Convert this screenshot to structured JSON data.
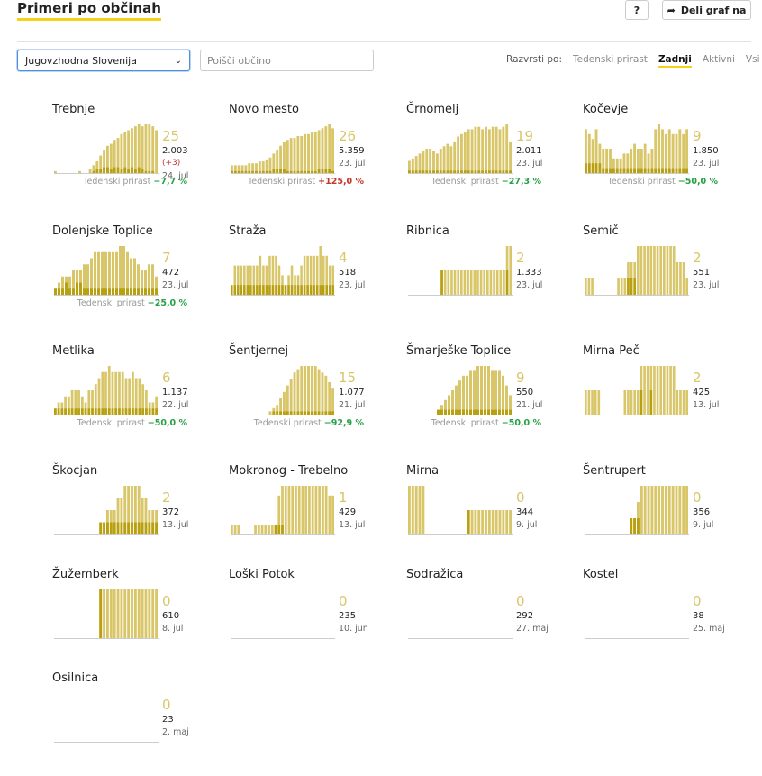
{
  "header": {
    "title": "Primeri po občinah",
    "help_label": "?",
    "share_label": "Deli graf na",
    "share_icon": "share-arrow-icon"
  },
  "filters": {
    "region_value": "Jugovzhodna Slovenija",
    "search_placeholder": "Poišči občino",
    "sort_label": "Razvrsti po:",
    "sort_options": [
      "Tedenski prirast",
      "Zadnji",
      "Aktivni",
      "Vsi"
    ],
    "sort_active": "Zadnji"
  },
  "colors": {
    "bar_light": "#d8c669",
    "bar_dark": "#b8a010",
    "accent": "#f5d21a",
    "positive": "#c0392b",
    "negative": "#27a046"
  },
  "chart_data": [
    {
      "type": "bar",
      "name": "Trebnje",
      "last": "25",
      "total": "2.003",
      "diff": "(+3)",
      "date": "24. jul",
      "growth_label": "Tedenski prirast",
      "growth": "−7,7 %",
      "growth_dir": "neg",
      "values": [
        1,
        0,
        0,
        0,
        0,
        0,
        0,
        1,
        0,
        0,
        2,
        4,
        6,
        9,
        12,
        14,
        15,
        17,
        18,
        20,
        21,
        22,
        23,
        24,
        25,
        24,
        25,
        25,
        24,
        22
      ],
      "dark": [
        0,
        0,
        0,
        0,
        0,
        0,
        0,
        0,
        0,
        0,
        0,
        1,
        2,
        2,
        3,
        3,
        2,
        3,
        3,
        2,
        3,
        2,
        3,
        2,
        3,
        2,
        1,
        1,
        1,
        0
      ]
    },
    {
      "type": "bar",
      "name": "Novo mesto",
      "last": "26",
      "total": "5.359",
      "date": "23. jul",
      "growth_label": "Tedenski prirast",
      "growth": "+125,0 %",
      "growth_dir": "pos",
      "values": [
        4,
        4,
        4,
        4,
        4,
        5,
        5,
        5,
        6,
        6,
        7,
        8,
        10,
        12,
        14,
        16,
        17,
        18,
        18,
        19,
        19,
        20,
        20,
        21,
        21,
        22,
        23,
        24,
        25,
        23
      ],
      "dark": [
        1,
        1,
        1,
        1,
        1,
        1,
        1,
        1,
        1,
        1,
        1,
        1,
        2,
        2,
        2,
        2,
        1,
        1,
        1,
        1,
        1,
        1,
        1,
        1,
        1,
        2,
        2,
        2,
        2,
        1
      ]
    },
    {
      "type": "bar",
      "name": "Črnomelj",
      "last": "19",
      "total": "2.011",
      "date": "23. jul",
      "growth_label": "Tedenski prirast",
      "growth": "−27,3 %",
      "growth_dir": "neg",
      "values": [
        5,
        6,
        7,
        8,
        9,
        10,
        10,
        9,
        8,
        10,
        11,
        12,
        11,
        13,
        15,
        16,
        17,
        18,
        18,
        19,
        19,
        18,
        19,
        18,
        19,
        19,
        18,
        19,
        20,
        13
      ],
      "dark": [
        1,
        1,
        1,
        1,
        1,
        1,
        1,
        1,
        1,
        1,
        1,
        1,
        1,
        1,
        1,
        1,
        1,
        1,
        1,
        1,
        1,
        1,
        1,
        1,
        1,
        1,
        1,
        1,
        1,
        1
      ]
    },
    {
      "type": "bar",
      "name": "Kočevje",
      "last": "9",
      "total": "1.850",
      "date": "23. jul",
      "growth_label": "Tedenski prirast",
      "growth": "−50,0 %",
      "growth_dir": "neg",
      "values": [
        9,
        8,
        7,
        9,
        6,
        5,
        5,
        5,
        3,
        3,
        3,
        4,
        4,
        5,
        6,
        5,
        5,
        6,
        4,
        5,
        9,
        10,
        9,
        8,
        9,
        8,
        8,
        9,
        8,
        9
      ],
      "dark": [
        2,
        2,
        2,
        2,
        2,
        1,
        1,
        1,
        1,
        1,
        1,
        1,
        1,
        1,
        1,
        1,
        1,
        1,
        1,
        1,
        1,
        1,
        1,
        1,
        1,
        1,
        1,
        1,
        1,
        1
      ]
    },
    {
      "type": "bar",
      "name": "Dolenjske Toplice",
      "last": "7",
      "total": "472",
      "date": "23. jul",
      "growth_label": "Tedenski prirast",
      "growth": "−25,0 %",
      "growth_dir": "neg",
      "values": [
        1,
        2,
        3,
        3,
        3,
        4,
        4,
        4,
        5,
        5,
        6,
        7,
        7,
        7,
        7,
        7,
        7,
        7,
        8,
        8,
        7,
        6,
        6,
        5,
        4,
        4,
        5,
        5,
        3
      ],
      "dark": [
        1,
        1,
        1,
        2,
        1,
        1,
        2,
        2,
        1,
        1,
        1,
        1,
        1,
        1,
        1,
        1,
        1,
        1,
        1,
        1,
        1,
        1,
        1,
        1,
        1,
        1,
        1,
        1,
        1
      ]
    },
    {
      "type": "bar",
      "name": "Straža",
      "last": "4",
      "total": "518",
      "date": "23. jul",
      "growth_label": "",
      "growth": "",
      "growth_dir": "neg",
      "values": [
        1,
        3,
        3,
        3,
        3,
        3,
        3,
        3,
        3,
        4,
        3,
        3,
        4,
        4,
        4,
        3,
        2,
        1,
        2,
        3,
        2,
        2,
        3,
        4,
        4,
        4,
        4,
        4,
        5,
        4,
        4,
        3,
        3
      ],
      "dark": [
        1,
        1,
        1,
        1,
        1,
        1,
        1,
        1,
        1,
        1,
        1,
        1,
        1,
        1,
        1,
        1,
        1,
        1,
        1,
        1,
        1,
        1,
        1,
        1,
        1,
        1,
        1,
        1,
        1,
        1,
        1,
        1,
        1
      ]
    },
    {
      "type": "bar",
      "name": "Ribnica",
      "last": "2",
      "total": "1.333",
      "date": "23. jul",
      "growth_label": "",
      "growth": "",
      "growth_dir": "neg",
      "values": [
        0,
        0,
        0,
        0,
        0,
        0,
        0,
        0,
        0,
        0,
        1,
        1,
        1,
        1,
        1,
        1,
        1,
        1,
        1,
        1,
        1,
        1,
        1,
        1,
        1,
        1,
        1,
        1,
        1,
        1,
        2,
        2
      ],
      "dark": [
        0,
        0,
        0,
        0,
        0,
        0,
        0,
        0,
        0,
        0,
        1,
        0,
        0,
        0,
        0,
        0,
        0,
        0,
        0,
        0,
        0,
        0,
        0,
        0,
        0,
        0,
        0,
        0,
        0,
        0,
        1,
        0
      ]
    },
    {
      "type": "bar",
      "name": "Semič",
      "last": "2",
      "total": "551",
      "date": "23. jul",
      "growth_label": "",
      "growth": "",
      "growth_dir": "neg",
      "values": [
        1,
        1,
        1,
        0,
        0,
        0,
        0,
        0,
        0,
        0,
        1,
        1,
        1,
        2,
        2,
        2,
        3,
        3,
        3,
        3,
        3,
        3,
        3,
        3,
        3,
        3,
        3,
        3,
        2,
        2,
        2,
        1
      ],
      "dark": [
        0,
        0,
        0,
        0,
        0,
        0,
        0,
        0,
        0,
        0,
        0,
        0,
        0,
        1,
        1,
        1,
        0,
        0,
        0,
        0,
        0,
        0,
        0,
        0,
        0,
        0,
        0,
        0,
        0,
        0,
        0,
        0
      ]
    },
    {
      "type": "bar",
      "name": "Metlika",
      "last": "6",
      "total": "1.137",
      "date": "22. jul",
      "growth_label": "Tedenski prirast",
      "growth": "−50,0 %",
      "growth_dir": "neg",
      "values": [
        1,
        2,
        2,
        3,
        3,
        4,
        4,
        4,
        3,
        2,
        4,
        4,
        5,
        6,
        7,
        7,
        8,
        7,
        7,
        7,
        7,
        6,
        6,
        7,
        6,
        6,
        5,
        4,
        2,
        2,
        3
      ],
      "dark": [
        1,
        1,
        1,
        1,
        1,
        1,
        1,
        1,
        1,
        1,
        1,
        1,
        1,
        1,
        1,
        1,
        1,
        1,
        1,
        1,
        1,
        1,
        1,
        1,
        1,
        1,
        1,
        1,
        1,
        1,
        1
      ]
    },
    {
      "type": "bar",
      "name": "Šentjernej",
      "last": "15",
      "total": "1.077",
      "date": "21. jul",
      "growth_label": "Tedenski prirast",
      "growth": "−92,9 %",
      "growth_dir": "neg",
      "values": [
        0,
        0,
        0,
        0,
        0,
        0,
        0,
        0,
        0,
        0,
        0,
        1,
        2,
        3,
        5,
        7,
        9,
        11,
        13,
        14,
        15,
        15,
        15,
        15,
        15,
        14,
        13,
        12,
        10,
        8
      ],
      "dark": [
        0,
        0,
        0,
        0,
        0,
        0,
        0,
        0,
        0,
        0,
        0,
        0,
        1,
        1,
        1,
        1,
        1,
        1,
        1,
        1,
        1,
        1,
        1,
        1,
        1,
        1,
        1,
        1,
        1,
        1
      ]
    },
    {
      "type": "bar",
      "name": "Šmarješke Toplice",
      "last": "9",
      "total": "550",
      "date": "21. jul",
      "growth_label": "Tedenski prirast",
      "growth": "−50,0 %",
      "growth_dir": "neg",
      "values": [
        0,
        0,
        0,
        0,
        0,
        0,
        0,
        0,
        1,
        2,
        3,
        4,
        5,
        6,
        7,
        8,
        8,
        9,
        9,
        10,
        10,
        10,
        10,
        9,
        9,
        9,
        8,
        6,
        4
      ],
      "dark": [
        0,
        0,
        0,
        0,
        0,
        0,
        0,
        0,
        1,
        1,
        1,
        1,
        1,
        1,
        1,
        1,
        1,
        1,
        1,
        1,
        1,
        1,
        1,
        1,
        1,
        1,
        1,
        1,
        1
      ]
    },
    {
      "type": "bar",
      "name": "Mirna Peč",
      "last": "2",
      "total": "425",
      "date": "13. jul",
      "growth_label": "",
      "growth": "",
      "growth_dir": "neg",
      "values": [
        1,
        1,
        1,
        1,
        1,
        0,
        0,
        0,
        0,
        0,
        0,
        0,
        1,
        1,
        1,
        1,
        1,
        2,
        2,
        2,
        2,
        2,
        2,
        2,
        2,
        2,
        2,
        2,
        1,
        1,
        1,
        1
      ],
      "dark": [
        0,
        0,
        0,
        0,
        0,
        0,
        0,
        0,
        0,
        0,
        0,
        0,
        0,
        0,
        0,
        0,
        0,
        1,
        0,
        0,
        1,
        0,
        0,
        0,
        0,
        0,
        0,
        0,
        0,
        0,
        0,
        0
      ]
    },
    {
      "type": "bar",
      "name": "Škocjan",
      "last": "2",
      "total": "372",
      "date": "13. jul",
      "growth_label": "",
      "growth": "",
      "growth_dir": "neg",
      "values": [
        0,
        0,
        0,
        0,
        0,
        0,
        0,
        0,
        0,
        0,
        0,
        0,
        0,
        1,
        1,
        2,
        2,
        2,
        3,
        3,
        4,
        4,
        4,
        4,
        4,
        3,
        3,
        2,
        2,
        2
      ],
      "dark": [
        0,
        0,
        0,
        0,
        0,
        0,
        0,
        0,
        0,
        0,
        0,
        0,
        0,
        1,
        1,
        1,
        1,
        1,
        1,
        1,
        1,
        1,
        1,
        1,
        1,
        1,
        1,
        1,
        1,
        1
      ]
    },
    {
      "type": "bar",
      "name": "Mokronog - Trebelno",
      "last": "1",
      "total": "429",
      "date": "13. jul",
      "growth_label": "",
      "growth": "",
      "growth_dir": "neg",
      "values": [
        1,
        1,
        1,
        0,
        0,
        0,
        0,
        1,
        1,
        1,
        1,
        1,
        1,
        1,
        4,
        5,
        5,
        5,
        5,
        5,
        5,
        5,
        5,
        5,
        5,
        5,
        5,
        5,
        5,
        4,
        4
      ],
      "dark": [
        0,
        0,
        0,
        0,
        0,
        0,
        0,
        0,
        0,
        0,
        0,
        0,
        0,
        1,
        1,
        1,
        0,
        0,
        0,
        0,
        0,
        0,
        0,
        0,
        0,
        0,
        0,
        0,
        0,
        0,
        0
      ]
    },
    {
      "type": "bar",
      "name": "Mirna",
      "last": "0",
      "total": "344",
      "date": "9. jul",
      "growth_label": "",
      "growth": "",
      "growth_dir": "neg",
      "values": [
        2,
        2,
        2,
        2,
        2,
        0,
        0,
        0,
        0,
        0,
        0,
        0,
        0,
        0,
        0,
        0,
        0,
        1,
        1,
        1,
        1,
        1,
        1,
        1,
        1,
        1,
        1,
        1,
        1,
        1
      ],
      "dark": [
        0,
        0,
        0,
        0,
        0,
        0,
        0,
        0,
        0,
        0,
        0,
        0,
        0,
        0,
        0,
        0,
        0,
        1,
        0,
        0,
        0,
        0,
        0,
        0,
        0,
        0,
        0,
        0,
        0,
        0
      ]
    },
    {
      "type": "bar",
      "name": "Šentrupert",
      "last": "0",
      "total": "356",
      "date": "9. jul",
      "growth_label": "",
      "growth": "",
      "growth_dir": "neg",
      "values": [
        0,
        0,
        0,
        0,
        0,
        0,
        0,
        0,
        0,
        0,
        0,
        0,
        0,
        1,
        1,
        2,
        3,
        3,
        3,
        3,
        3,
        3,
        3,
        3,
        3,
        3,
        3,
        3,
        3,
        3
      ],
      "dark": [
        0,
        0,
        0,
        0,
        0,
        0,
        0,
        0,
        0,
        0,
        0,
        0,
        0,
        1,
        1,
        1,
        0,
        0,
        0,
        0,
        0,
        0,
        0,
        0,
        0,
        0,
        0,
        0,
        0,
        0
      ]
    },
    {
      "type": "bar",
      "name": "Žužemberk",
      "last": "0",
      "total": "610",
      "date": "8. jul",
      "growth_label": "",
      "growth": "",
      "growth_dir": "neg",
      "values": [
        0,
        0,
        0,
        0,
        0,
        0,
        0,
        0,
        0,
        0,
        0,
        0,
        0,
        1,
        1,
        1,
        1,
        1,
        1,
        1,
        1,
        1,
        1,
        1,
        1,
        1,
        1,
        1,
        1,
        1
      ],
      "dark": [
        0,
        0,
        0,
        0,
        0,
        0,
        0,
        0,
        0,
        0,
        0,
        0,
        0,
        1,
        0,
        0,
        0,
        0,
        0,
        0,
        0,
        0,
        0,
        0,
        0,
        0,
        0,
        0,
        0,
        0
      ]
    },
    {
      "type": "bar",
      "name": "Loški Potok",
      "last": "0",
      "total": "235",
      "date": "10. jun",
      "growth_label": "",
      "growth": "",
      "growth_dir": "neg",
      "values": [],
      "dark": []
    },
    {
      "type": "bar",
      "name": "Sodražica",
      "last": "0",
      "total": "292",
      "date": "27. maj",
      "growth_label": "",
      "growth": "",
      "growth_dir": "neg",
      "values": [],
      "dark": []
    },
    {
      "type": "bar",
      "name": "Kostel",
      "last": "0",
      "total": "38",
      "date": "25. maj",
      "growth_label": "",
      "growth": "",
      "growth_dir": "neg",
      "values": [],
      "dark": []
    },
    {
      "type": "bar",
      "name": "Osilnica",
      "last": "0",
      "total": "23",
      "date": "2. maj",
      "growth_label": "",
      "growth": "",
      "growth_dir": "neg",
      "values": [],
      "dark": []
    }
  ]
}
